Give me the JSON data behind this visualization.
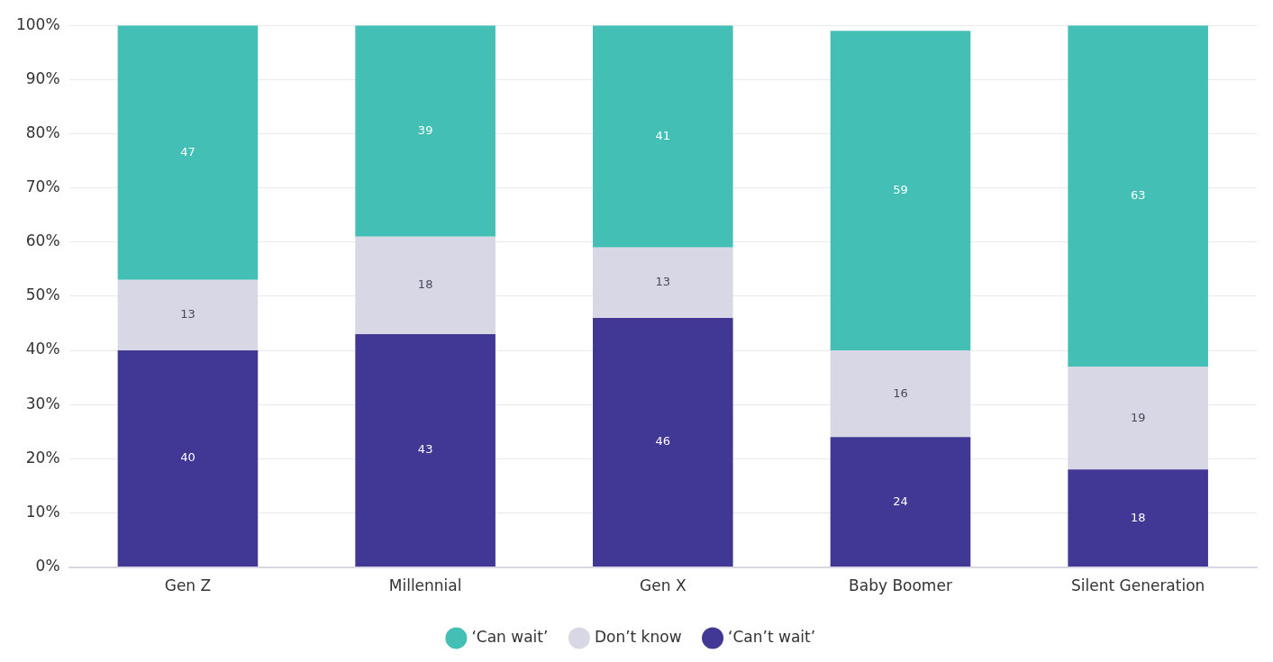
{
  "chart_data": {
    "type": "bar",
    "stacked": true,
    "categories": [
      "Gen Z",
      "Millennial",
      "Gen X",
      "Baby Boomer",
      "Silent Generation"
    ],
    "series": [
      {
        "name": "‘Can’t wait’",
        "color": "#413795",
        "values": [
          40,
          43,
          46,
          24,
          18
        ]
      },
      {
        "name": "Don’t know",
        "color": "#d8d7e5",
        "values": [
          13,
          18,
          13,
          16,
          19
        ]
      },
      {
        "name": "‘Can wait’",
        "color": "#44bfb5",
        "values": [
          47,
          39,
          41,
          59,
          63
        ]
      }
    ],
    "ylim": [
      0,
      100
    ],
    "yticks": [
      {
        "value": 0,
        "label": "0%"
      },
      {
        "value": 10,
        "label": "10%"
      },
      {
        "value": 20,
        "label": "20%"
      },
      {
        "value": 30,
        "label": "30%"
      },
      {
        "value": 40,
        "label": "40%"
      },
      {
        "value": 50,
        "label": "50%"
      },
      {
        "value": 60,
        "label": "60%"
      },
      {
        "value": 70,
        "label": "70%"
      },
      {
        "value": 80,
        "label": "80%"
      },
      {
        "value": 90,
        "label": "90%"
      },
      {
        "value": 100,
        "label": "100%"
      }
    ],
    "grid": "y",
    "legend": "bottom",
    "data_labels": true
  }
}
